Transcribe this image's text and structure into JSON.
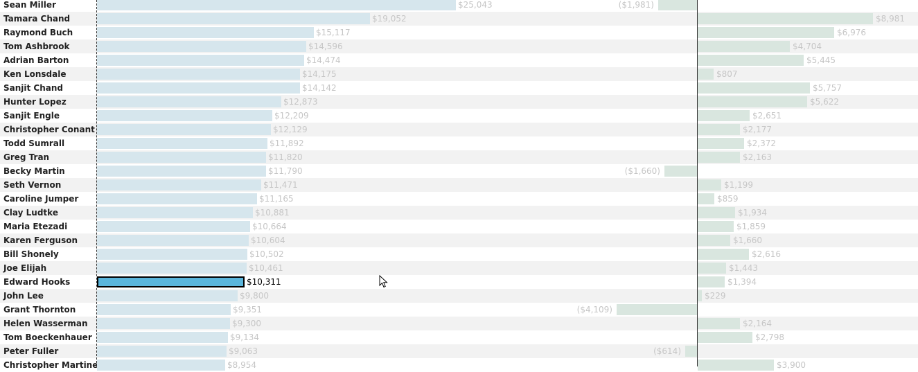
{
  "chart_data": {
    "type": "bar",
    "selected_category": "Edward Hooks",
    "categories": [
      "Sean Miller",
      "Tamara Chand",
      "Raymond Buch",
      "Tom Ashbrook",
      "Adrian Barton",
      "Ken Lonsdale",
      "Sanjit Chand",
      "Hunter Lopez",
      "Sanjit Engle",
      "Christopher Conant",
      "Todd Sumrall",
      "Greg Tran",
      "Becky Martin",
      "Seth Vernon",
      "Caroline Jumper",
      "Clay Ludtke",
      "Maria Etezadi",
      "Karen Ferguson",
      "Bill Shonely",
      "Joe Elijah",
      "Edward Hooks",
      "John Lee",
      "Grant Thornton",
      "Helen Wasserman",
      "Tom Boeckenhauer",
      "Peter Fuller",
      "Christopher Martinez"
    ],
    "series": [
      {
        "values": [
          25043,
          19052,
          15117,
          14596,
          14474,
          14175,
          14142,
          12873,
          12209,
          12129,
          11892,
          11820,
          11790,
          11471,
          11165,
          10881,
          10664,
          10604,
          10502,
          10461,
          10311,
          9800,
          9351,
          9300,
          9134,
          9063,
          8954
        ],
        "labels": [
          "$25,043",
          "$19,052",
          "$15,117",
          "$14,596",
          "$14,474",
          "$14,175",
          "$14,142",
          "$12,873",
          "$12,209",
          "$12,129",
          "$11,892",
          "$11,820",
          "$11,790",
          "$11,471",
          "$11,165",
          "$10,881",
          "$10,664",
          "$10,604",
          "$10,502",
          "$10,461",
          "$10,311",
          "$9,800",
          "$9,351",
          "$9,300",
          "$9,134",
          "$9,063",
          "$8,954"
        ]
      },
      {
        "values": [
          -1981,
          8981,
          6976,
          4704,
          5445,
          807,
          5757,
          5622,
          2651,
          2177,
          2372,
          2163,
          -1660,
          1199,
          859,
          1934,
          1859,
          1660,
          2616,
          1443,
          1394,
          229,
          -4109,
          2164,
          2798,
          -614,
          3900
        ],
        "labels": [
          "($1,981)",
          "$8,981",
          "$6,976",
          "$4,704",
          "$5,445",
          "$807",
          "$5,757",
          "$5,622",
          "$2,651",
          "$2,177",
          "$2,372",
          "$2,163",
          "($1,660)",
          "$1,199",
          "$859",
          "$1,934",
          "$1,859",
          "$1,660",
          "$2,616",
          "$1,443",
          "$1,394",
          "$229",
          "($4,109)",
          "$2,164",
          "$2,798",
          "($614)",
          "$3,900"
        ]
      }
    ],
    "colors": {
      "sales_bar": "#d6e6ed",
      "profit_bar": "#d9e6df",
      "selected_bar": "#5ab5db",
      "muted_label": "#c6c6c6",
      "alt_row": "#f2f2f2"
    }
  },
  "cursor": {
    "icon": "mouse-pointer-icon"
  }
}
